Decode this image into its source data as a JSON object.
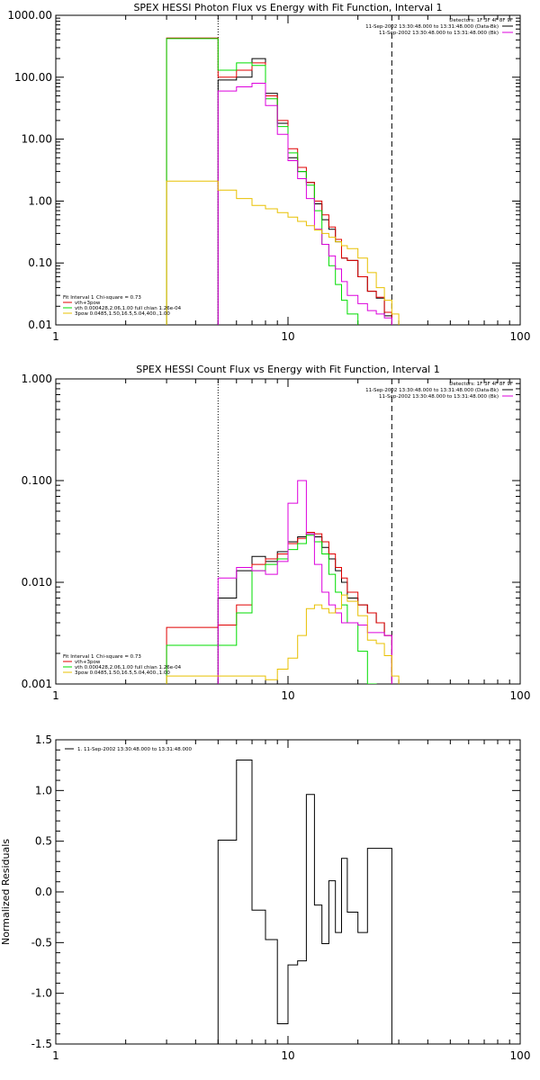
{
  "colors": {
    "black": "#000000",
    "red": "#e00000",
    "green": "#00dd00",
    "magenta": "#dd00dd",
    "yellow": "#e8c000"
  },
  "chart_data": [
    {
      "type": "line",
      "title": "SPEX HESSI Photon Flux vs Energy with Fit Function, Interval 1",
      "xscale": "log",
      "yscale": "log",
      "xlim": [
        1,
        100
      ],
      "ylim": [
        0.01,
        1000
      ],
      "yticks": [
        "0.01",
        "0.10",
        "1.00",
        "10.00",
        "100.00",
        "1000.00"
      ],
      "xticks": [
        "1",
        "10",
        "100"
      ],
      "vlines": [
        {
          "x": 5,
          "style": "dotted"
        },
        {
          "x": 28,
          "style": "dashed"
        }
      ],
      "info": {
        "detectors": "Detectors: 1F 3F 4F 8F 9F",
        "lines": [
          "11-Sep-2002  13:30:48.000 to 13:31:48.000 (Data-Bk)",
          "11-Sep-2002  13:30:48.000 to 13:31:48.000 (Bk)"
        ]
      },
      "fit_legend": {
        "header": [
          "Fit Interval 1",
          "Chi-square = 0.73"
        ],
        "items": [
          {
            "label": "vth+3pow",
            "color": "#e00000"
          },
          {
            "label": "vth 0.000428,2.06,1.00   full chian 1.26e-04",
            "color": "#00dd00"
          },
          {
            "label": "3pow 0.0485,1.50,16.5,5.04,400.,1.00",
            "color": "#e8c000"
          }
        ]
      },
      "series": [
        {
          "name": "Data-Bk",
          "color": "#000000",
          "edges": [
            5,
            6,
            7,
            8,
            9,
            10,
            11,
            12,
            13,
            14,
            15,
            16,
            17,
            18,
            20,
            22,
            24,
            26,
            28
          ],
          "values": [
            90,
            100,
            200,
            55,
            18,
            5,
            3,
            2,
            0.9,
            0.5,
            0.35,
            0.22,
            0.12,
            0.11,
            0.06,
            0.035,
            0.027,
            0.014
          ]
        },
        {
          "name": "vth+3pow",
          "color": "#e00000",
          "edges": [
            3,
            4,
            5,
            6,
            7,
            8,
            9,
            10,
            11,
            12,
            13,
            14,
            15,
            16,
            17,
            18,
            20,
            22,
            24,
            26,
            28
          ],
          "values": [
            430,
            430,
            100,
            130,
            170,
            50,
            20,
            7,
            3.5,
            2,
            1,
            0.6,
            0.38,
            0.24,
            0.12,
            0.11,
            0.06,
            0.035,
            0.028,
            0.016
          ]
        },
        {
          "name": "vth",
          "color": "#00dd00",
          "edges": [
            3,
            4,
            5,
            6,
            7,
            8,
            9,
            10,
            11,
            12,
            13,
            14,
            15,
            16,
            17,
            18,
            20,
            22,
            24
          ],
          "values": [
            420,
            420,
            130,
            170,
            155,
            45,
            16,
            6,
            3,
            1.8,
            0.7,
            0.2,
            0.09,
            0.045,
            0.025,
            0.015,
            0.0095,
            0.008
          ]
        },
        {
          "name": "Bk",
          "color": "#dd00dd",
          "edges": [
            5,
            6,
            7,
            8,
            9,
            10,
            11,
            12,
            13,
            14,
            15,
            16,
            17,
            18,
            20,
            22,
            24,
            26,
            28
          ],
          "values": [
            60,
            70,
            80,
            35,
            12,
            4.5,
            2.3,
            1.1,
            0.35,
            0.2,
            0.13,
            0.08,
            0.05,
            0.03,
            0.022,
            0.017,
            0.015,
            0.013
          ]
        },
        {
          "name": "3pow",
          "color": "#e8c000",
          "edges": [
            3,
            4,
            5,
            6,
            7,
            8,
            9,
            10,
            11,
            12,
            13,
            14,
            15,
            16,
            17,
            18,
            20,
            22,
            24,
            26,
            28,
            30
          ],
          "values": [
            2.1,
            2.1,
            1.5,
            1.1,
            0.85,
            0.75,
            0.65,
            0.55,
            0.47,
            0.4,
            0.34,
            0.3,
            0.26,
            0.22,
            0.19,
            0.17,
            0.12,
            0.07,
            0.04,
            0.025,
            0.015
          ]
        }
      ]
    },
    {
      "type": "line",
      "title": "SPEX HESSI Count Flux vs Energy with Fit Function, Interval 1",
      "xscale": "log",
      "yscale": "log",
      "xlim": [
        1,
        100
      ],
      "ylim": [
        0.001,
        1
      ],
      "yticks": [
        "0.001",
        "0.010",
        "0.100",
        "1.000"
      ],
      "xticks": [
        "1",
        "10",
        "100"
      ],
      "vlines": [
        {
          "x": 5,
          "style": "dotted"
        },
        {
          "x": 28,
          "style": "dashed"
        }
      ],
      "info": {
        "detectors": "Detectors: 1F 3F 4F 8F 9F",
        "lines": [
          "11-Sep-2002  13:30:48.000 to 13:31:48.000 (Data-Bk)",
          "11-Sep-2002  13:30:48.000 to 13:31:48.000 (Bk)"
        ]
      },
      "fit_legend": {
        "header": [
          "Fit Interval 1",
          "Chi-square = 0.73"
        ],
        "items": [
          {
            "label": "vth+3pow",
            "color": "#e00000"
          },
          {
            "label": "vth 0.000428,2.06,1.00   full chian 1.26e-04",
            "color": "#00dd00"
          },
          {
            "label": "3pow 0.0485,1.50,16.5,5.04,400.,1.00",
            "color": "#e8c000"
          }
        ]
      },
      "series": [
        {
          "name": "Data-Bk",
          "color": "#000000",
          "edges": [
            5,
            6,
            7,
            8,
            9,
            10,
            11,
            12,
            13,
            14,
            15,
            16,
            17,
            18,
            20,
            22,
            24,
            26,
            28
          ],
          "values": [
            0.007,
            0.013,
            0.018,
            0.016,
            0.02,
            0.025,
            0.028,
            0.03,
            0.028,
            0.022,
            0.017,
            0.013,
            0.01,
            0.007,
            0.006,
            0.005,
            0.004,
            0.003
          ]
        },
        {
          "name": "vth+3pow",
          "color": "#e00000",
          "edges": [
            3,
            4,
            5,
            6,
            7,
            8,
            9,
            10,
            11,
            12,
            13,
            14,
            15,
            16,
            17,
            18,
            20,
            22,
            24,
            26,
            28
          ],
          "values": [
            0.0036,
            0.0036,
            0.0038,
            0.006,
            0.015,
            0.017,
            0.019,
            0.024,
            0.027,
            0.031,
            0.03,
            0.025,
            0.019,
            0.014,
            0.011,
            0.008,
            0.006,
            0.005,
            0.004,
            0.003
          ]
        },
        {
          "name": "vth",
          "color": "#00dd00",
          "edges": [
            3,
            4,
            5,
            6,
            7,
            8,
            9,
            10,
            11,
            12,
            13,
            14,
            15,
            16,
            17,
            18,
            20,
            22,
            24
          ],
          "values": [
            0.0024,
            0.0024,
            0.0024,
            0.005,
            0.013,
            0.015,
            0.017,
            0.021,
            0.024,
            0.029,
            0.025,
            0.019,
            0.012,
            0.008,
            0.006,
            0.004,
            0.0021,
            0.001
          ]
        },
        {
          "name": "Bk",
          "color": "#dd00dd",
          "edges": [
            5,
            6,
            7,
            8,
            9,
            10,
            11,
            12,
            13,
            14,
            15,
            16,
            17,
            18,
            20,
            22,
            24,
            26,
            28
          ],
          "values": [
            0.011,
            0.014,
            0.013,
            0.012,
            0.016,
            0.06,
            0.1,
            0.03,
            0.015,
            0.008,
            0.006,
            0.005,
            0.004,
            0.004,
            0.0038,
            0.0032,
            0.0032,
            0.003
          ]
        },
        {
          "name": "3pow",
          "color": "#e8c000",
          "edges": [
            3,
            4,
            5,
            6,
            7,
            8,
            9,
            10,
            11,
            12,
            13,
            14,
            15,
            16,
            17,
            18,
            20,
            22,
            24,
            26,
            28,
            30
          ],
          "values": [
            0.0012,
            0.0012,
            0.0012,
            0.0012,
            0.0012,
            0.0011,
            0.0014,
            0.0018,
            0.003,
            0.0055,
            0.006,
            0.0055,
            0.005,
            0.0055,
            0.0075,
            0.0065,
            0.0047,
            0.0027,
            0.0025,
            0.0019,
            0.0012
          ]
        }
      ]
    },
    {
      "type": "line",
      "title": "",
      "ylabel": "Normalized Residuals",
      "xscale": "log",
      "yscale": "linear",
      "xlim": [
        1,
        100
      ],
      "ylim": [
        -1.5,
        1.5
      ],
      "yticks": [
        "-1.5",
        "-1.0",
        "-0.5",
        "0.0",
        "0.5",
        "1.0",
        "1.5"
      ],
      "xticks": [
        "1",
        "10",
        "100"
      ],
      "legend": "1. 11-Sep-2002 13:30:48.000 to 13:31:48.000",
      "series": [
        {
          "name": "1. 11-Sep-2002 13:30:48.000 to 13:31:48.000",
          "color": "#000000",
          "edges": [
            5,
            6,
            7,
            8,
            9,
            10,
            11,
            12,
            13,
            14,
            15,
            16,
            17,
            18,
            20,
            22,
            24,
            26,
            28
          ],
          "values": [
            0.51,
            1.3,
            -0.18,
            -0.47,
            -1.3,
            -0.72,
            -0.68,
            0.96,
            -0.13,
            -0.51,
            0.11,
            -0.4,
            0.33,
            -0.2,
            -0.4,
            0.43,
            0.43,
            0.43
          ]
        }
      ]
    }
  ]
}
